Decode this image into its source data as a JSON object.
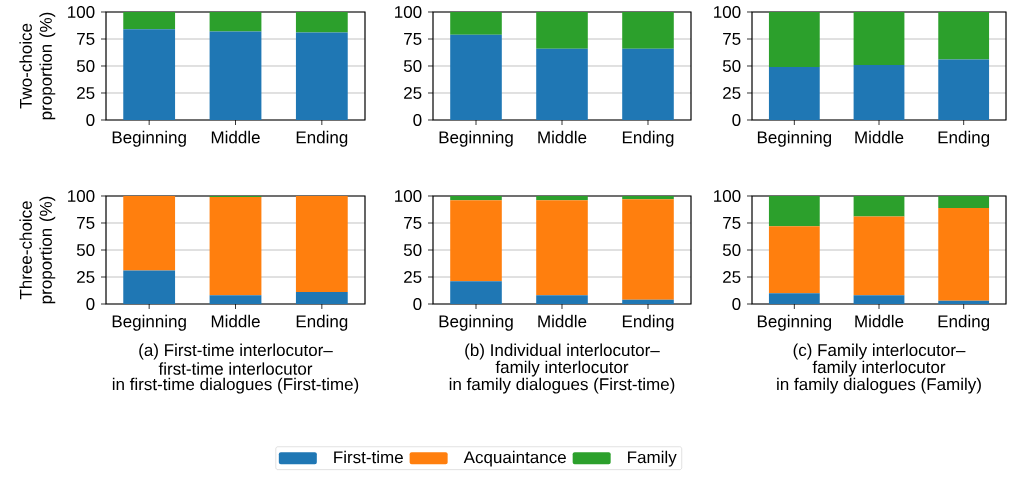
{
  "chart_data": [
    {
      "type": "bar",
      "stacked": true,
      "categories": [
        "Beginning",
        "Middle",
        "Ending"
      ],
      "ylabel": "Two-choice proportion (%)",
      "ylim": [
        0,
        100
      ],
      "yticks": [
        0,
        25,
        50,
        75,
        100
      ],
      "grid": "y",
      "series": [
        {
          "color": "#1f77b4",
          "values": [
            84,
            82,
            81
          ]
        },
        {
          "color": "#2ca02c",
          "values": [
            16,
            18,
            19
          ]
        }
      ]
    },
    {
      "type": "bar",
      "stacked": true,
      "categories": [
        "Beginning",
        "Middle",
        "Ending"
      ],
      "ylim": [
        0,
        100
      ],
      "yticks": [
        0,
        25,
        50,
        75,
        100
      ],
      "grid": "y",
      "series": [
        {
          "color": "#1f77b4",
          "values": [
            79,
            66,
            66
          ]
        },
        {
          "color": "#2ca02c",
          "values": [
            21,
            34,
            34
          ]
        }
      ]
    },
    {
      "type": "bar",
      "stacked": true,
      "categories": [
        "Beginning",
        "Middle",
        "Ending"
      ],
      "ylim": [
        0,
        100
      ],
      "yticks": [
        0,
        25,
        50,
        75,
        100
      ],
      "grid": "y",
      "series": [
        {
          "color": "#1f77b4",
          "values": [
            49,
            51,
            56
          ]
        },
        {
          "color": "#2ca02c",
          "values": [
            51,
            49,
            44
          ]
        }
      ]
    },
    {
      "type": "bar",
      "stacked": true,
      "categories": [
        "Beginning",
        "Middle",
        "Ending"
      ],
      "ylabel": "Three-choice proportion (%)",
      "ylim": [
        0,
        100
      ],
      "yticks": [
        0,
        25,
        50,
        75,
        100
      ],
      "grid": "y",
      "annotations": [
        "(a) First-time interlocutor–",
        "first-time interlocutor",
        "in first-time dialogues (First-time)"
      ],
      "series": [
        {
          "color": "#1f77b4",
          "values": [
            31,
            8,
            11
          ]
        },
        {
          "color": "#ff7f0e",
          "values": [
            69,
            91,
            89
          ]
        },
        {
          "color": "#2ca02c",
          "values": [
            0,
            1,
            0
          ]
        }
      ]
    },
    {
      "type": "bar",
      "stacked": true,
      "categories": [
        "Beginning",
        "Middle",
        "Ending"
      ],
      "ylim": [
        0,
        100
      ],
      "yticks": [
        0,
        25,
        50,
        75,
        100
      ],
      "grid": "y",
      "legend": "bottom",
      "annotations": [
        "(b) Individual interlocutor–",
        "family interlocutor",
        "in family dialogues (First-time)"
      ],
      "series": [
        {
          "name": "First-time",
          "color": "#1f77b4",
          "values": [
            21,
            8,
            4
          ]
        },
        {
          "name": "Acquaintance",
          "color": "#ff7f0e",
          "values": [
            75,
            88,
            93
          ]
        },
        {
          "name": "Family",
          "color": "#2ca02c",
          "values": [
            4,
            4,
            3
          ]
        }
      ]
    },
    {
      "type": "bar",
      "stacked": true,
      "categories": [
        "Beginning",
        "Middle",
        "Ending"
      ],
      "ylim": [
        0,
        100
      ],
      "yticks": [
        0,
        25,
        50,
        75,
        100
      ],
      "grid": "y",
      "annotations": [
        "(c) Family interlocutor–",
        "family interlocutor",
        "in family dialogues (Family)"
      ],
      "series": [
        {
          "color": "#1f77b4",
          "values": [
            10,
            8,
            3
          ]
        },
        {
          "color": "#ff7f0e",
          "values": [
            62,
            73,
            86
          ]
        },
        {
          "color": "#2ca02c",
          "values": [
            28,
            19,
            11
          ]
        }
      ]
    }
  ]
}
